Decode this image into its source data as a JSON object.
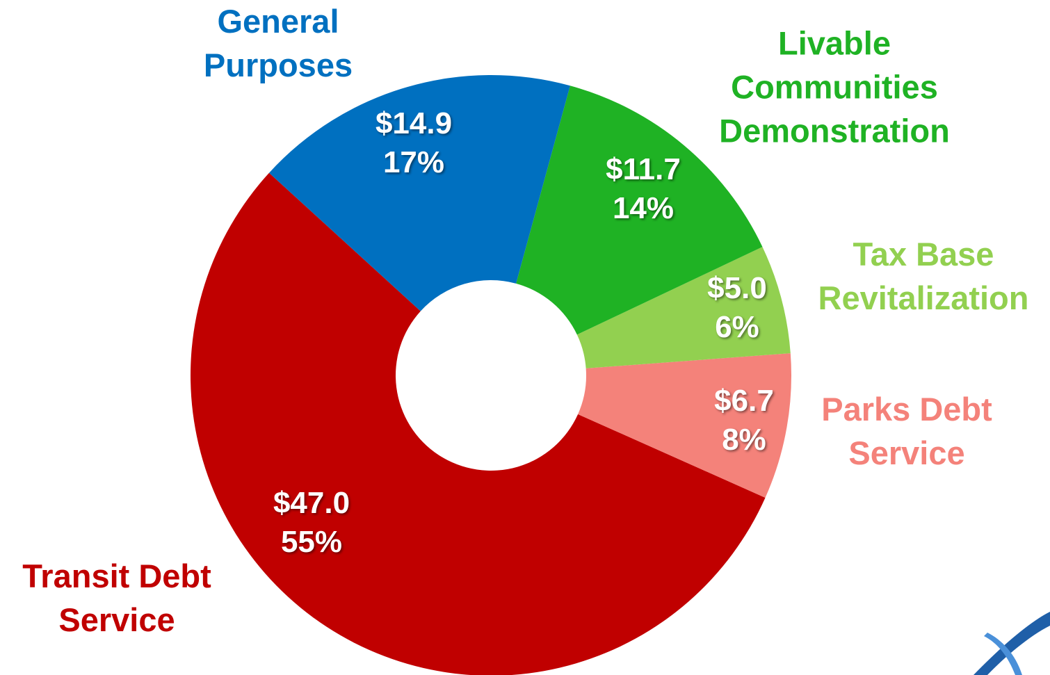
{
  "chart_data": {
    "type": "donut",
    "categories": [
      "General Purposes",
      "Livable Communities Demonstration",
      "Tax Base Revitalization",
      "Parks Debt Service",
      "Transit Debt Service"
    ],
    "values": [
      14.9,
      11.7,
      5.0,
      6.7,
      47.0
    ],
    "value_labels": [
      "$14.9",
      "$11.7",
      "$5.0",
      "$6.7",
      "$47.0"
    ],
    "percent_labels": [
      "17%",
      "14%",
      "6%",
      "8%",
      "55%"
    ],
    "colors": [
      "#0070c0",
      "#1fb224",
      "#92d050",
      "#f4827a",
      "#c00000"
    ]
  }
}
